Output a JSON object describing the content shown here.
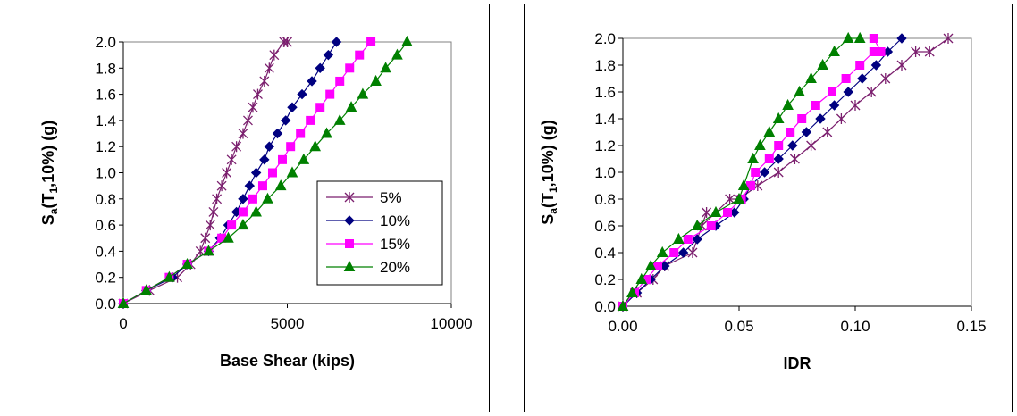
{
  "chart_data": [
    {
      "type": "line",
      "xlabel": "Base Shear (kips)",
      "ylabel_parts": {
        "base": "S",
        "sub": "a",
        "paren_open": "(T",
        "sub2": "1",
        "rest": ",10%) (g)"
      },
      "xlim": [
        0,
        10000
      ],
      "ylim": [
        0,
        2.0
      ],
      "xticks": [
        0,
        5000,
        10000
      ],
      "xtick_labels": [
        "0",
        "5000",
        "10000"
      ],
      "yticks": [
        0,
        0.2,
        0.4,
        0.6,
        0.8,
        1.0,
        1.2,
        1.4,
        1.6,
        1.8,
        2.0
      ],
      "ytick_labels": [
        "0.0",
        "0.2",
        "0.4",
        "0.6",
        "0.8",
        "1.0",
        "1.2",
        "1.4",
        "1.6",
        "1.8",
        "2.0"
      ],
      "grid": false,
      "legend_position": "right-middle",
      "series": [
        {
          "name": "5%",
          "color": "#7b1f6e",
          "marker": "star",
          "x": [
            0,
            800,
            1650,
            2050,
            2350,
            2500,
            2650,
            2750,
            2850,
            3000,
            3150,
            3300,
            3450,
            3650,
            3800,
            3950,
            4100,
            4300,
            4450,
            4600,
            4900,
            5000
          ],
          "y": [
            0,
            0.1,
            0.2,
            0.3,
            0.4,
            0.5,
            0.6,
            0.7,
            0.8,
            0.9,
            1.0,
            1.1,
            1.2,
            1.3,
            1.4,
            1.5,
            1.6,
            1.7,
            1.8,
            1.9,
            2.0,
            2.0
          ]
        },
        {
          "name": "10%",
          "color": "#000080",
          "marker": "diamond",
          "x": [
            0,
            700,
            1500,
            1950,
            2600,
            2950,
            3200,
            3450,
            3650,
            3850,
            4050,
            4300,
            4450,
            4700,
            4950,
            5150,
            5450,
            5750,
            6000,
            6250,
            6500
          ],
          "y": [
            0,
            0.1,
            0.2,
            0.3,
            0.4,
            0.5,
            0.6,
            0.7,
            0.8,
            0.9,
            1.0,
            1.1,
            1.2,
            1.3,
            1.4,
            1.5,
            1.6,
            1.7,
            1.8,
            1.9,
            2.0
          ]
        },
        {
          "name": "15%",
          "color": "#ff00ff",
          "marker": "square",
          "x": [
            0,
            700,
            1400,
            1950,
            2600,
            3000,
            3300,
            3650,
            3950,
            4250,
            4550,
            4850,
            5100,
            5400,
            5700,
            6000,
            6300,
            6600,
            6900,
            7200,
            7550
          ],
          "y": [
            0,
            0.1,
            0.2,
            0.3,
            0.4,
            0.5,
            0.6,
            0.7,
            0.8,
            0.9,
            1.0,
            1.1,
            1.2,
            1.3,
            1.4,
            1.5,
            1.6,
            1.7,
            1.8,
            1.9,
            2.0
          ]
        },
        {
          "name": "20%",
          "color": "#008000",
          "marker": "triangle",
          "x": [
            0,
            700,
            1400,
            1950,
            2600,
            3200,
            3650,
            4050,
            4400,
            4800,
            5150,
            5500,
            5850,
            6200,
            6600,
            6950,
            7300,
            7700,
            8000,
            8350,
            8650
          ],
          "y": [
            0,
            0.1,
            0.2,
            0.3,
            0.4,
            0.5,
            0.6,
            0.7,
            0.8,
            0.9,
            1.0,
            1.1,
            1.2,
            1.3,
            1.4,
            1.5,
            1.6,
            1.7,
            1.8,
            1.9,
            2.0
          ]
        }
      ]
    },
    {
      "type": "line",
      "xlabel": "IDR",
      "ylabel_parts": {
        "base": "S",
        "sub": "a",
        "paren_open": "(T",
        "sub2": "1",
        "rest": ",10%) (g)"
      },
      "xlim": [
        0,
        0.15
      ],
      "ylim": [
        0,
        2.0
      ],
      "xticks": [
        0,
        0.05,
        0.1,
        0.15
      ],
      "xtick_labels": [
        "0.00",
        "0.05",
        "0.10",
        "0.15"
      ],
      "yticks": [
        0,
        0.2,
        0.4,
        0.6,
        0.8,
        1.0,
        1.2,
        1.4,
        1.6,
        1.8,
        2.0
      ],
      "ytick_labels": [
        "0.0",
        "0.2",
        "0.4",
        "0.6",
        "0.8",
        "1.0",
        "1.2",
        "1.4",
        "1.6",
        "1.8",
        "2.0"
      ],
      "grid": false,
      "legend_position": "none",
      "series": [
        {
          "name": "5%",
          "color": "#7b1f6e",
          "marker": "star",
          "x": [
            0,
            0.006,
            0.013,
            0.018,
            0.03,
            0.036,
            0.034,
            0.046,
            0.05,
            0.058,
            0.067,
            0.074,
            0.081,
            0.088,
            0.094,
            0.1,
            0.107,
            0.113,
            0.12,
            0.126,
            0.132,
            0.14
          ],
          "y": [
            0,
            0.1,
            0.2,
            0.3,
            0.4,
            0.7,
            0.6,
            0.8,
            0.8,
            0.9,
            1.0,
            1.1,
            1.2,
            1.3,
            1.4,
            1.5,
            1.6,
            1.7,
            1.8,
            1.9,
            1.9,
            2.0
          ]
        },
        {
          "name": "10%",
          "color": "#000080",
          "marker": "diamond",
          "x": [
            0,
            0.006,
            0.012,
            0.018,
            0.026,
            0.032,
            0.04,
            0.048,
            0.052,
            0.055,
            0.061,
            0.067,
            0.073,
            0.079,
            0.085,
            0.091,
            0.097,
            0.103,
            0.109,
            0.114,
            0.12
          ],
          "y": [
            0,
            0.1,
            0.2,
            0.3,
            0.4,
            0.5,
            0.6,
            0.7,
            0.8,
            0.9,
            1.0,
            1.1,
            1.2,
            1.3,
            1.4,
            1.5,
            1.6,
            1.7,
            1.8,
            1.9,
            2.0
          ]
        },
        {
          "name": "15%",
          "color": "#ff00ff",
          "marker": "square",
          "x": [
            0,
            0.005,
            0.01,
            0.015,
            0.022,
            0.028,
            0.038,
            0.045,
            0.051,
            0.055,
            0.057,
            0.063,
            0.067,
            0.072,
            0.077,
            0.083,
            0.09,
            0.096,
            0.102,
            0.108,
            0.111,
            0.108
          ],
          "y": [
            0,
            0.1,
            0.2,
            0.3,
            0.4,
            0.5,
            0.6,
            0.7,
            0.8,
            0.9,
            1.0,
            1.1,
            1.2,
            1.3,
            1.4,
            1.5,
            1.6,
            1.7,
            1.8,
            1.9,
            1.9,
            2.0
          ]
        },
        {
          "name": "20%",
          "color": "#008000",
          "marker": "triangle",
          "x": [
            0,
            0.004,
            0.008,
            0.012,
            0.017,
            0.024,
            0.032,
            0.04,
            0.05,
            0.052,
            0.056,
            0.059,
            0.063,
            0.067,
            0.071,
            0.076,
            0.081,
            0.086,
            0.091,
            0.097,
            0.102
          ],
          "y": [
            0,
            0.1,
            0.2,
            0.3,
            0.4,
            0.5,
            0.6,
            0.7,
            0.8,
            0.9,
            1.1,
            1.2,
            1.3,
            1.4,
            1.5,
            1.6,
            1.7,
            1.8,
            1.9,
            2.0,
            2.0
          ]
        }
      ]
    }
  ]
}
